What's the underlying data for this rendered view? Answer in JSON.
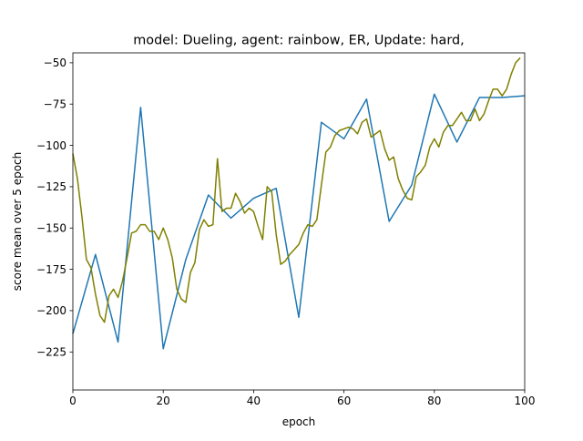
{
  "chart_data": {
    "type": "line",
    "title": "model: Dueling, agent: rainbow, ER, Update: hard,",
    "xlabel": "epoch",
    "ylabel": "score mean over 5 epoch",
    "xlim": [
      0,
      100
    ],
    "ylim": [
      -248,
      -44
    ],
    "xticks": [
      0,
      20,
      40,
      60,
      80,
      100
    ],
    "yticks": [
      -225,
      -200,
      -175,
      -150,
      -125,
      -100,
      -75,
      -50
    ],
    "grid": false,
    "series": [
      {
        "color": "#1f77b4",
        "x": [
          0,
          5,
          10,
          15,
          20,
          25,
          30,
          35,
          40,
          45,
          50,
          55,
          60,
          65,
          70,
          75,
          80,
          85,
          90,
          95,
          100
        ],
        "y": [
          -214,
          -166,
          -219,
          -77,
          -223,
          -169,
          -130,
          -144,
          -132,
          -126,
          -204,
          -86,
          -96,
          -72,
          -146,
          -124,
          -69,
          -98,
          -71,
          -71,
          -70
        ]
      },
      {
        "color": "#808000",
        "x": [
          0,
          1,
          2,
          3,
          4,
          5,
          6,
          7,
          8,
          9,
          10,
          11,
          12,
          13,
          14,
          15,
          16,
          17,
          18,
          19,
          20,
          21,
          22,
          23,
          24,
          25,
          26,
          27,
          28,
          29,
          30,
          31,
          32,
          33,
          34,
          35,
          36,
          37,
          38,
          39,
          40,
          41,
          42,
          43,
          44,
          45,
          46,
          47,
          48,
          49,
          50,
          51,
          52,
          53,
          54,
          55,
          56,
          57,
          58,
          59,
          60,
          61,
          62,
          63,
          64,
          65,
          66,
          67,
          68,
          69,
          70,
          71,
          72,
          73,
          74,
          75,
          76,
          77,
          78,
          79,
          80,
          81,
          82,
          83,
          84,
          85,
          86,
          87,
          88,
          89,
          90,
          91,
          92,
          93,
          94,
          95,
          96,
          97,
          98,
          99
        ],
        "y": [
          -105,
          -120,
          -143,
          -169,
          -174,
          -190,
          -203,
          -207,
          -191,
          -187,
          -192,
          -182,
          -168,
          -153,
          -152,
          -148,
          -148,
          -152,
          -152,
          -157,
          -150,
          -157,
          -168,
          -187,
          -193,
          -195,
          -177,
          -171,
          -151,
          -145,
          -149,
          -148,
          -108,
          -140,
          -138,
          -138,
          -129,
          -134,
          -141,
          -138,
          -140,
          -149,
          -157,
          -125,
          -128,
          -154,
          -172,
          -170,
          -166,
          -163,
          -160,
          -153,
          -148,
          -149,
          -145,
          -124,
          -104,
          -101,
          -94,
          -91,
          -90,
          -89,
          -90,
          -93,
          -86,
          -84,
          -95,
          -93,
          -91,
          -102,
          -109,
          -107,
          -120,
          -127,
          -132,
          -133,
          -119,
          -116,
          -112,
          -101,
          -96,
          -101,
          -92,
          -88,
          -88,
          -84,
          -80,
          -85,
          -85,
          -78,
          -85,
          -81,
          -73,
          -66,
          -66,
          -70,
          -66,
          -57,
          -50,
          -47
        ]
      }
    ]
  }
}
